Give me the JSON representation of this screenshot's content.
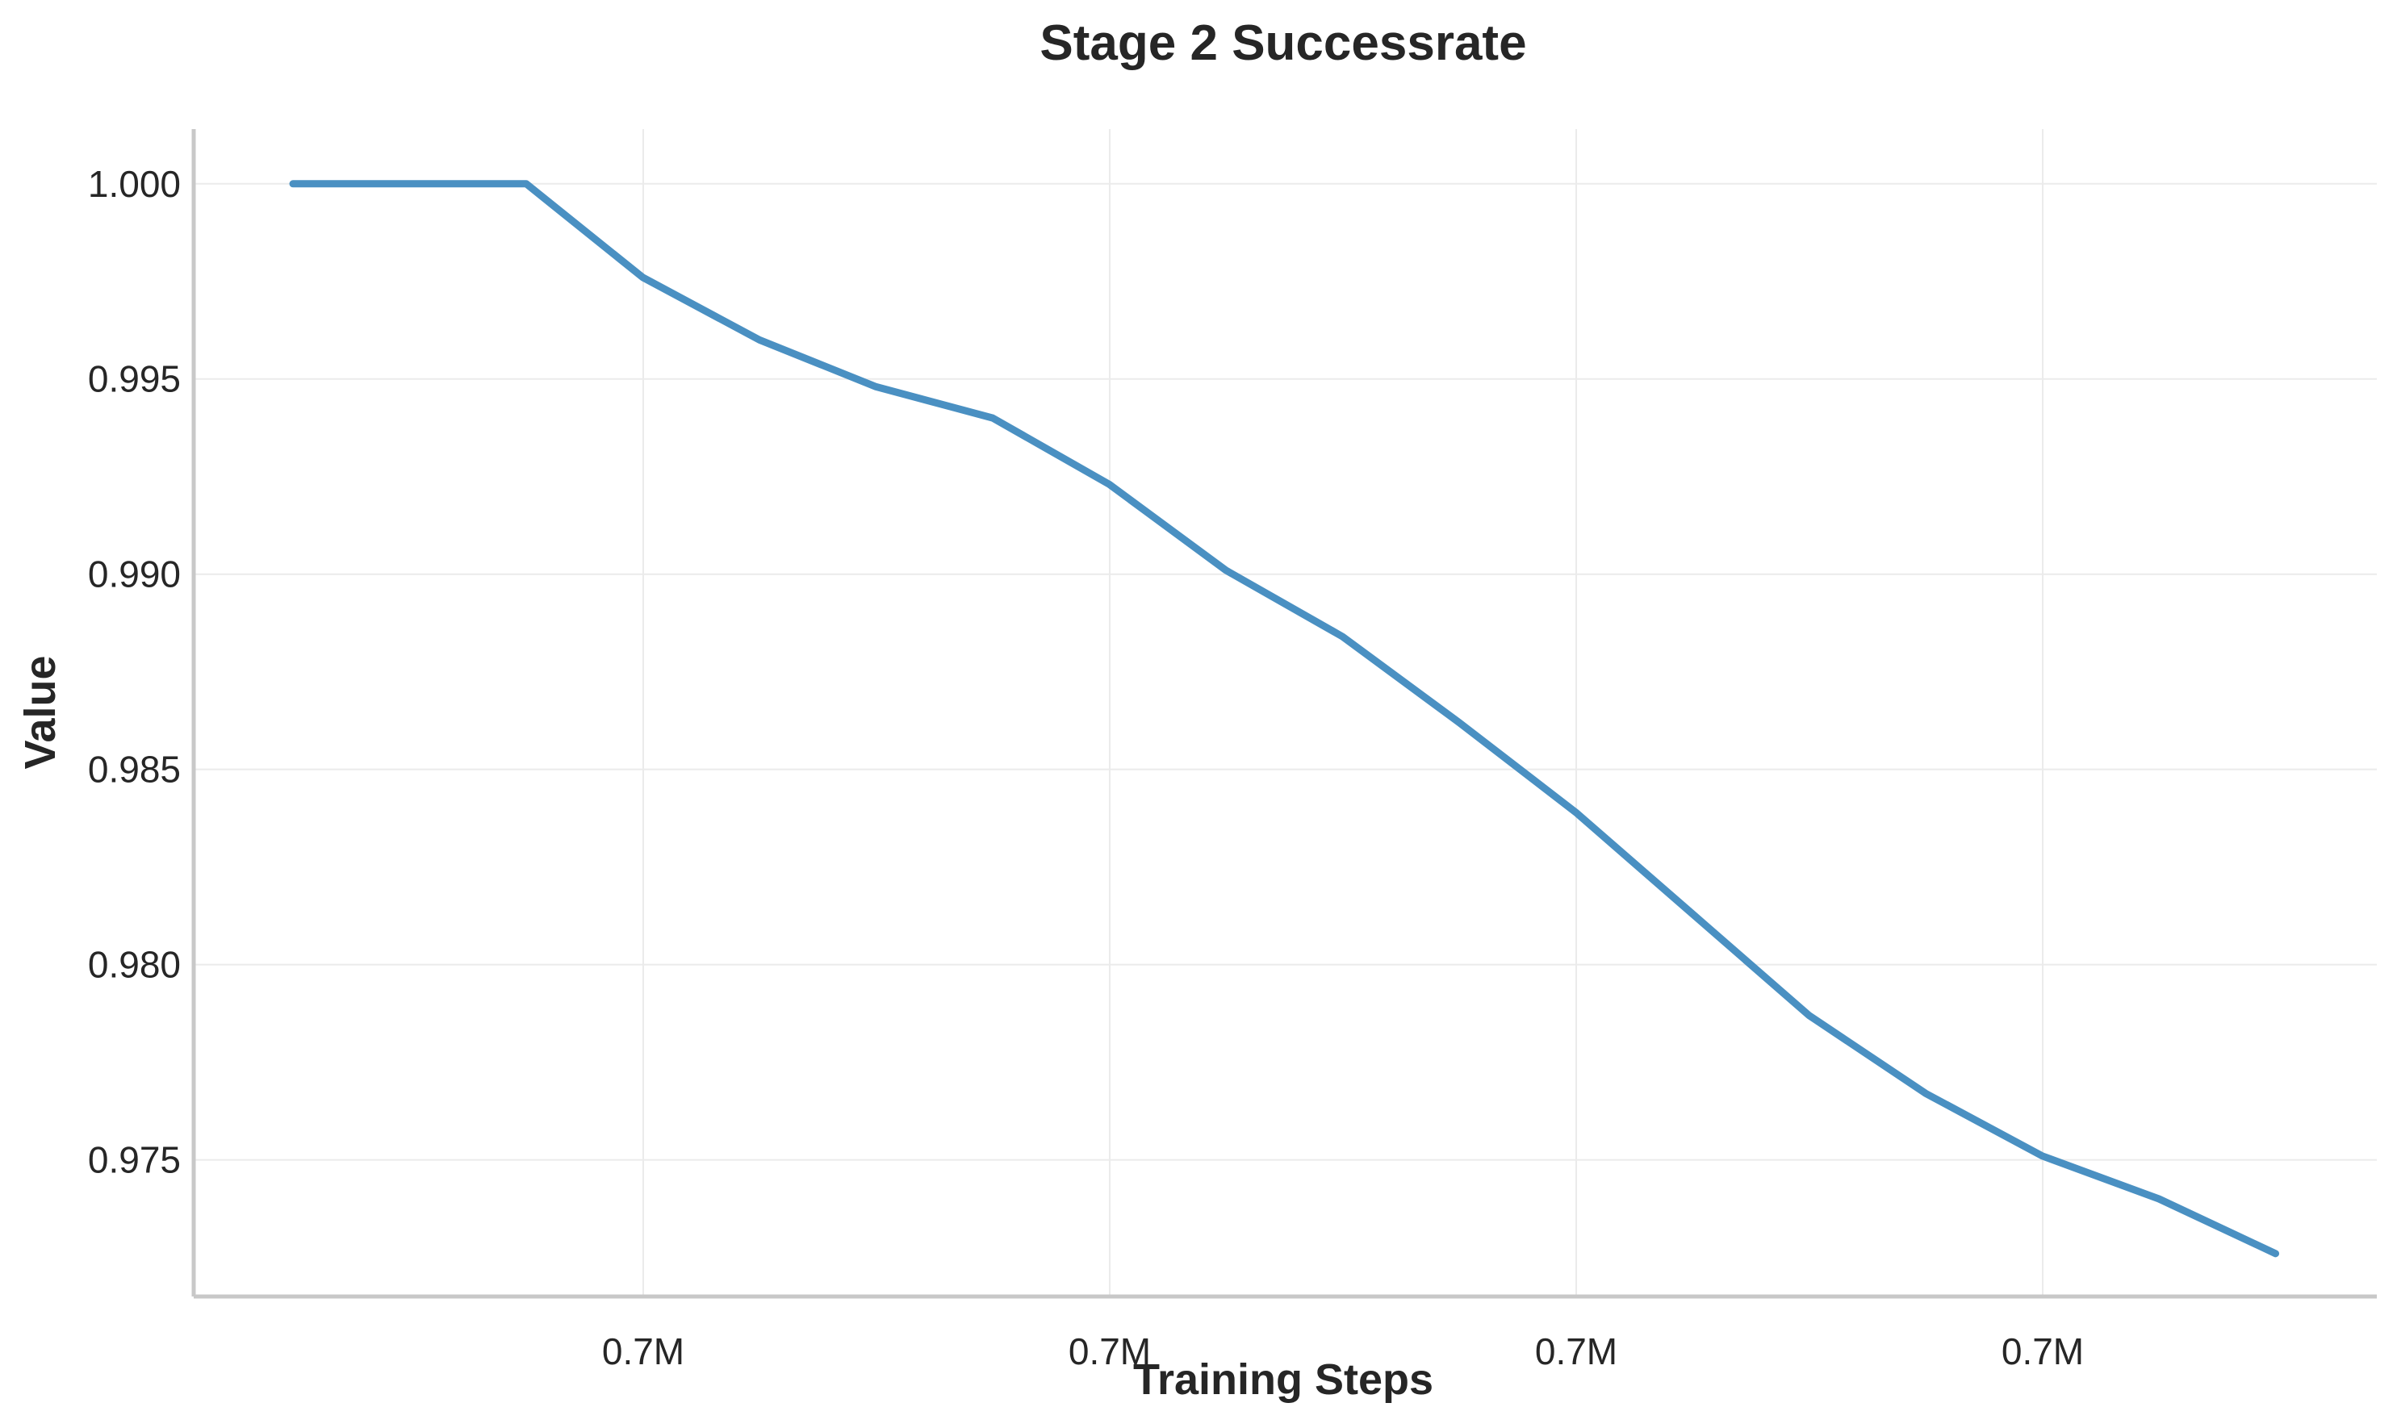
{
  "chart_data": {
    "type": "line",
    "title": "Stage 2 Successrate",
    "xlabel": "Training Steps",
    "ylabel": "Value",
    "x_tick_labels": [
      "0.7M",
      "0.7M",
      "0.7M",
      "0.7M"
    ],
    "y_ticks": [
      0.975,
      0.98,
      0.985,
      0.99,
      0.995,
      1.0
    ],
    "y_tick_labels": [
      "0.975",
      "0.980",
      "0.985",
      "0.990",
      "0.995",
      "1.000"
    ],
    "ylim": [
      0.9715,
      1.0014
    ],
    "grid": true,
    "legend": false,
    "series": [
      {
        "color": "#4a90c2",
        "values": [
          1.0,
          1.0,
          1.0,
          0.9976,
          0.996,
          0.9948,
          0.994,
          0.9923,
          0.9901,
          0.9884,
          0.9862,
          0.9839,
          0.9813,
          0.9787,
          0.9767,
          0.9751,
          0.974,
          0.9726
        ]
      }
    ]
  }
}
